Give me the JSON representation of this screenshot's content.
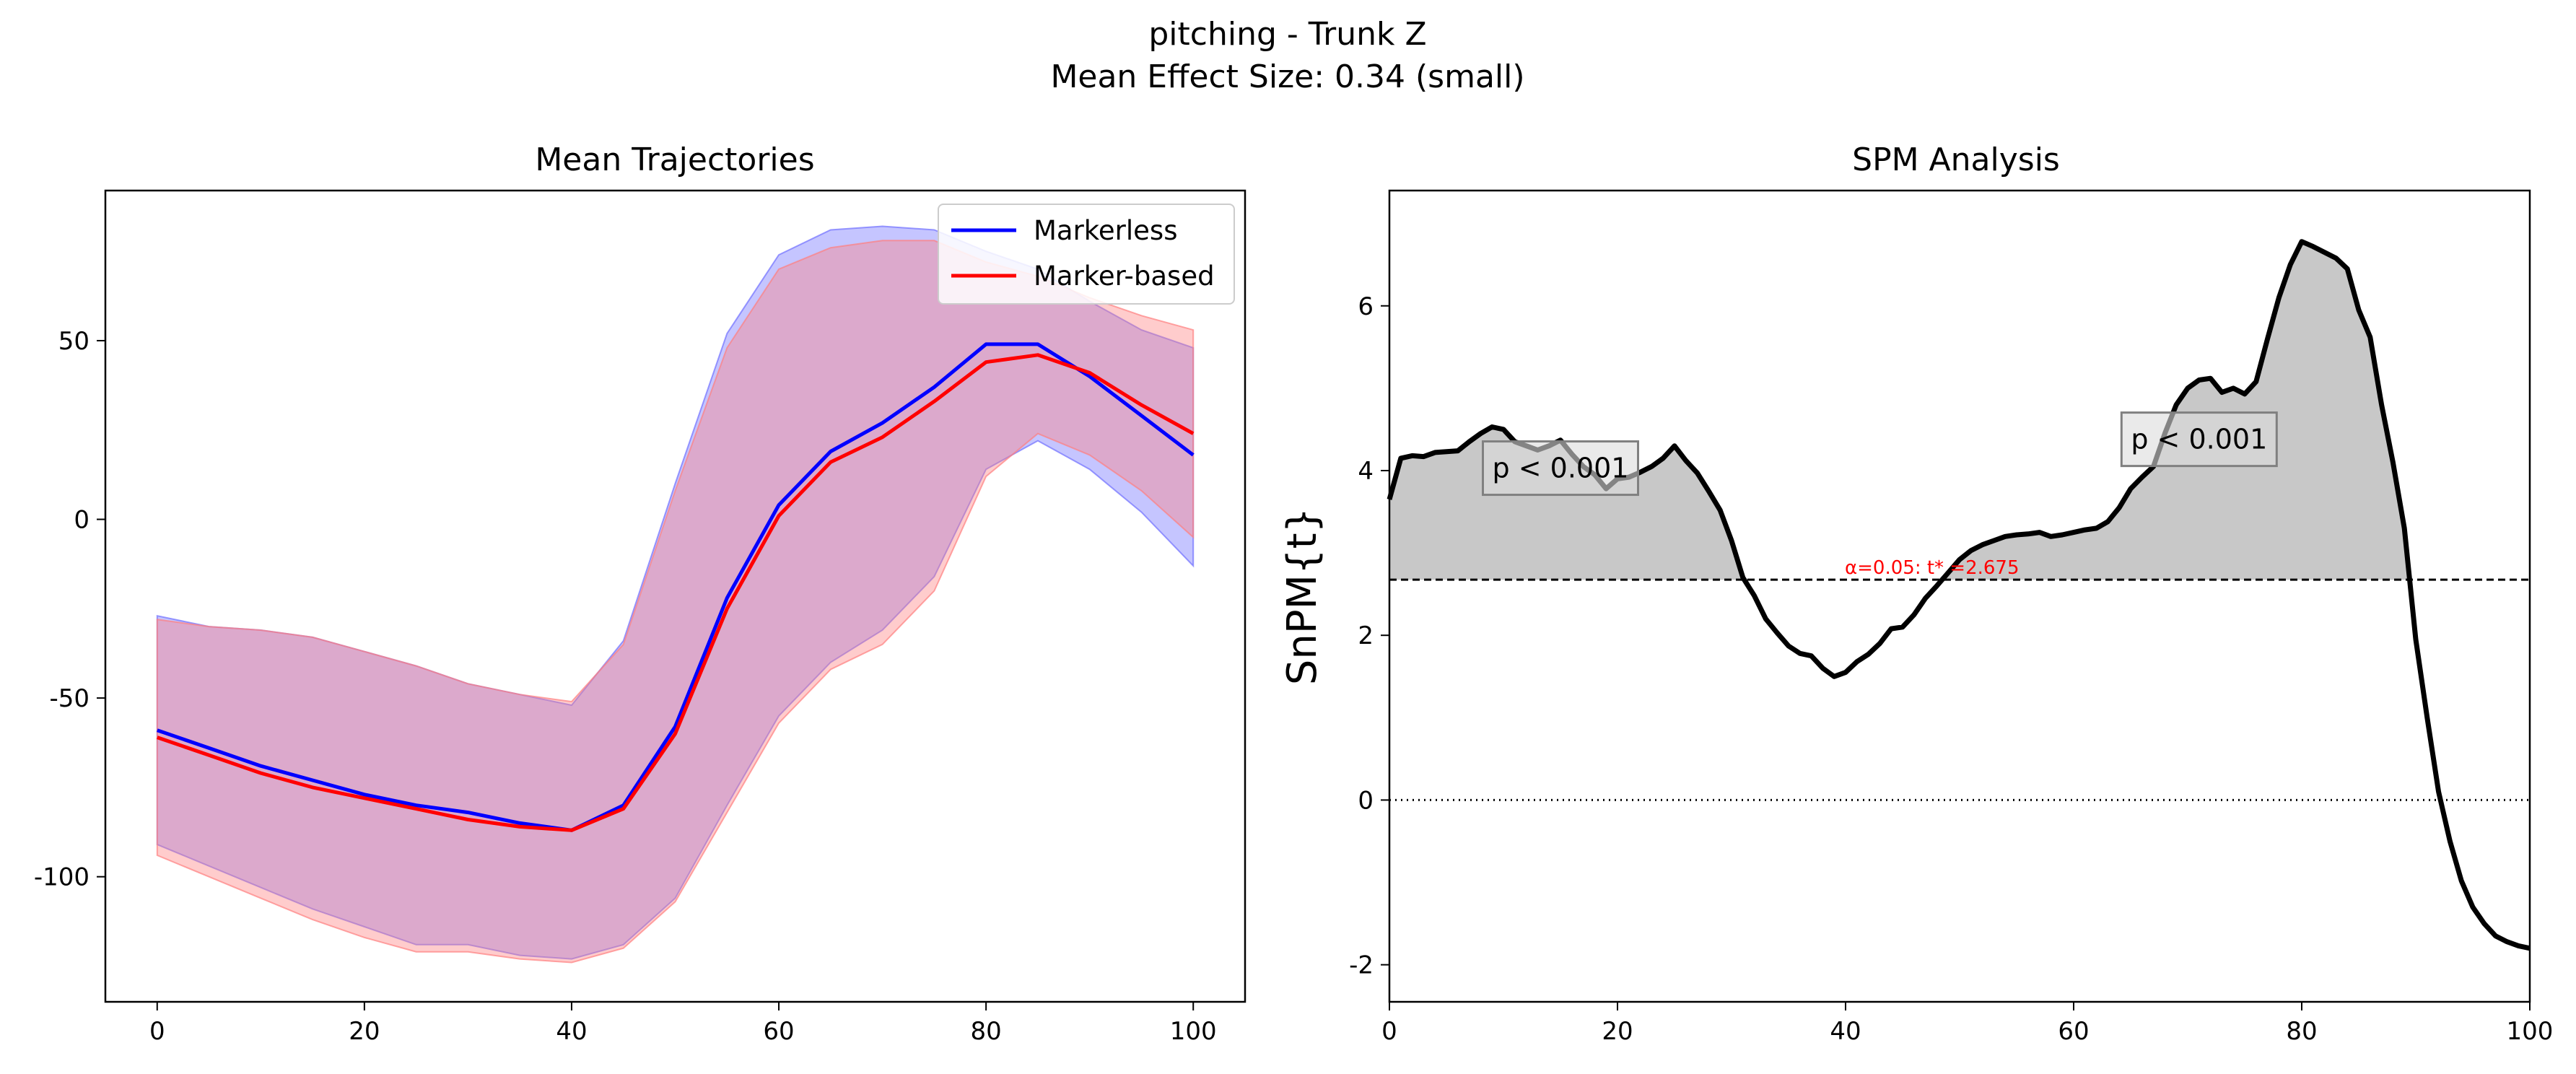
{
  "figure": {
    "title_line1": "pitching - Trunk Z",
    "title_line2": "Mean Effect Size: 0.34 (small)"
  },
  "colors": {
    "markerless": "#0000ff",
    "marker_based": "#ff0000",
    "markerless_band": "#6f6fff",
    "marker_based_band": "#ff7f7f",
    "spm_line": "#000000",
    "suprathreshold_fill": "#c8c8c8",
    "threshold_text": "#ff0000"
  },
  "chart_data": [
    {
      "type": "line",
      "title": "Mean Trajectories",
      "xlabel": "",
      "ylabel": "",
      "xlim": [
        -5,
        105
      ],
      "ylim": [
        -135,
        92
      ],
      "xticks": [
        0,
        20,
        40,
        60,
        80,
        100
      ],
      "yticks": [
        -100,
        -50,
        0,
        50
      ],
      "grid": false,
      "legend_position": "top-right",
      "x": [
        0,
        5,
        10,
        15,
        20,
        25,
        30,
        35,
        40,
        45,
        50,
        55,
        60,
        65,
        70,
        75,
        80,
        85,
        90,
        95,
        100
      ],
      "series": [
        {
          "name": "Markerless",
          "color": "#0000ff",
          "values": [
            -59,
            -64,
            -69,
            -73,
            -77,
            -80,
            -82,
            -85,
            -87,
            -80,
            -58,
            -22,
            4,
            19,
            27,
            37,
            49,
            49,
            40,
            29,
            18
          ],
          "band_upper": [
            -27,
            -30,
            -31,
            -33,
            -37,
            -41,
            -46,
            -49,
            -52,
            -34,
            10,
            52,
            74,
            81,
            82,
            81,
            75,
            70,
            61,
            53,
            48
          ],
          "band_lower": [
            -91,
            -97,
            -103,
            -109,
            -114,
            -119,
            -119,
            -122,
            -123,
            -119,
            -106,
            -80,
            -55,
            -40,
            -31,
            -16,
            14,
            22,
            14,
            2,
            -13
          ]
        },
        {
          "name": "Marker-based",
          "color": "#ff0000",
          "values": [
            -61,
            -66,
            -71,
            -75,
            -78,
            -81,
            -84,
            -86,
            -87,
            -81,
            -60,
            -25,
            1,
            16,
            23,
            33,
            44,
            46,
            41,
            32,
            24
          ],
          "band_upper": [
            -28,
            -30,
            -31,
            -33,
            -37,
            -41,
            -46,
            -49,
            -51,
            -35,
            8,
            48,
            70,
            76,
            78,
            78,
            72,
            68,
            62,
            57,
            53
          ],
          "band_lower": [
            -94,
            -100,
            -106,
            -112,
            -117,
            -121,
            -121,
            -123,
            -124,
            -120,
            -107,
            -82,
            -57,
            -42,
            -35,
            -20,
            12,
            24,
            18,
            8,
            -5
          ]
        }
      ]
    },
    {
      "type": "line",
      "title": "SPM Analysis",
      "xlabel": "",
      "ylabel": "SnPM{t}",
      "xlim": [
        0,
        100
      ],
      "ylim": [
        -2.45,
        7.4
      ],
      "xticks": [
        0,
        20,
        40,
        60,
        80,
        100
      ],
      "yticks": [
        -2,
        0,
        2,
        4,
        6
      ],
      "grid": false,
      "threshold": 2.675,
      "threshold_label": "α=0.05:  t* =2.675",
      "zero_line": 0,
      "x": [
        0,
        1,
        2,
        3,
        4,
        5,
        6,
        7,
        8,
        9,
        10,
        11,
        12,
        13,
        14,
        15,
        16,
        17,
        18,
        19,
        20,
        21,
        22,
        23,
        24,
        25,
        26,
        27,
        28,
        29,
        30,
        31,
        32,
        33,
        34,
        35,
        36,
        37,
        38,
        39,
        40,
        41,
        42,
        43,
        44,
        45,
        46,
        47,
        48,
        49,
        50,
        51,
        52,
        53,
        54,
        55,
        56,
        57,
        58,
        59,
        60,
        61,
        62,
        63,
        64,
        65,
        66,
        67,
        68,
        69,
        70,
        71,
        72,
        73,
        74,
        75,
        76,
        77,
        78,
        79,
        80,
        81,
        82,
        83,
        84,
        85,
        86,
        87,
        88,
        89,
        90,
        91,
        92,
        93,
        94,
        95,
        96,
        97,
        98,
        99,
        100
      ],
      "values": [
        3.65,
        4.15,
        4.18,
        4.17,
        4.22,
        4.23,
        4.24,
        4.35,
        4.45,
        4.53,
        4.5,
        4.35,
        4.3,
        4.25,
        4.3,
        4.37,
        4.2,
        4.05,
        3.95,
        3.78,
        3.9,
        3.92,
        3.98,
        4.05,
        4.15,
        4.3,
        4.12,
        3.97,
        3.75,
        3.52,
        3.15,
        2.7,
        2.48,
        2.2,
        2.03,
        1.87,
        1.78,
        1.75,
        1.6,
        1.5,
        1.55,
        1.68,
        1.77,
        1.9,
        2.08,
        2.1,
        2.25,
        2.45,
        2.6,
        2.76,
        2.92,
        3.03,
        3.1,
        3.15,
        3.2,
        3.22,
        3.23,
        3.25,
        3.2,
        3.22,
        3.25,
        3.28,
        3.3,
        3.38,
        3.55,
        3.78,
        3.92,
        4.05,
        4.45,
        4.8,
        5.0,
        5.1,
        5.12,
        4.95,
        5.0,
        4.93,
        5.08,
        5.6,
        6.1,
        6.5,
        6.78,
        6.72,
        6.65,
        6.58,
        6.45,
        5.95,
        5.62,
        4.8,
        4.1,
        3.3,
        1.95,
        1.0,
        0.1,
        -0.5,
        -0.98,
        -1.3,
        -1.5,
        -1.65,
        -1.72,
        -1.77,
        -1.8
      ],
      "clusters": [
        {
          "x_range": [
            0,
            31
          ],
          "label": "p < 0.001",
          "label_x": 15,
          "label_y": 4.03
        },
        {
          "x_range": [
            89.5,
            100
          ],
          "skip": true
        },
        {
          "x_range": [
            48.5,
            89.5
          ],
          "label": "p < 0.001",
          "label_x": 71,
          "label_y": 4.38
        }
      ]
    }
  ]
}
